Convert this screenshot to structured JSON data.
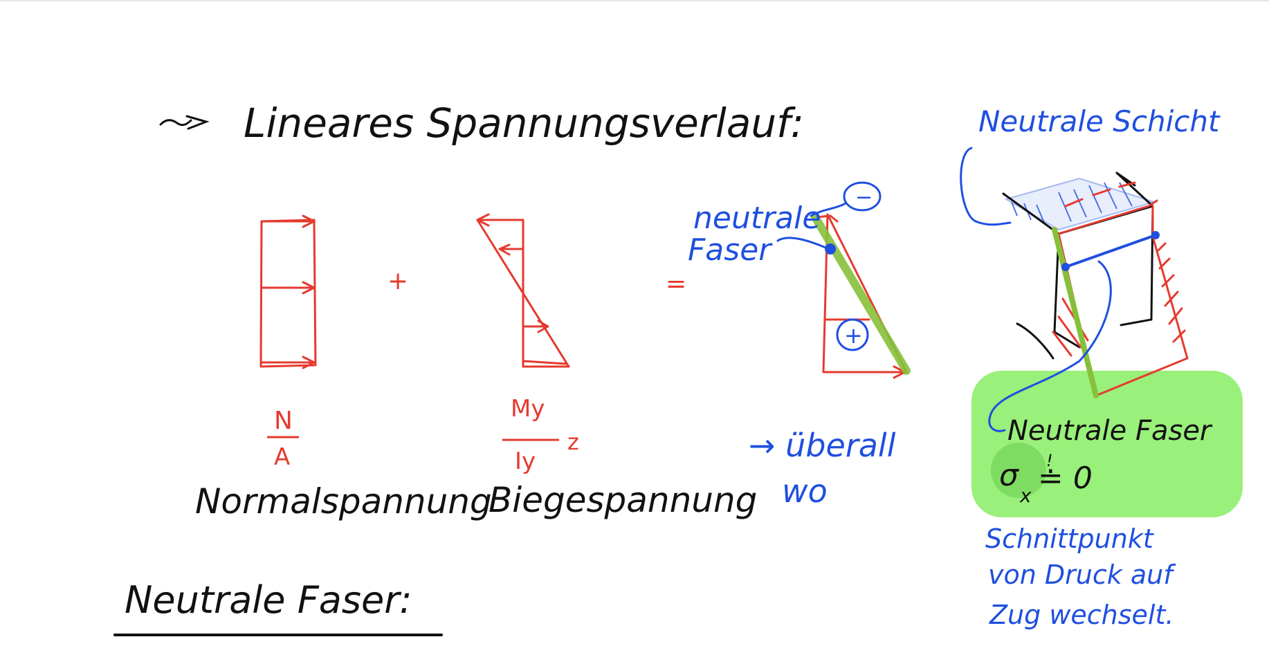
{
  "colors": {
    "ink_black": "#111111",
    "ink_red": "#e53a2f",
    "ink_blue": "#1f4fe0",
    "highlight_green": "#99f07a",
    "line_green": "#86c03a"
  },
  "heading": "Lineares Spannungsverlauf:",
  "diagram": {
    "normal": {
      "numerator": "N",
      "denominator": "A",
      "label": "Normalspannung"
    },
    "plus_sign": "+",
    "bending": {
      "numerator": "My",
      "denominator": "Iy",
      "factor": "z",
      "label": "Biegespannung"
    },
    "equals_sign": "=",
    "result": {
      "minus_symbol": "−",
      "plus_symbol": "+",
      "neutral_fiber_label_1": "neutrale",
      "neutral_fiber_label_2": "Faser",
      "note_line_1": "→ überall",
      "note_line_2": "wo"
    }
  },
  "right_panel": {
    "neutral_layer": "Neutrale Schicht",
    "neutral_fiber": "Neutrale Faser",
    "sigma_symbol": "σ",
    "sigma_subscript": "x",
    "sigma_relation": "≐ 0",
    "sigma_mark": "!",
    "explanation": [
      "Schnittpunkt",
      "von Druck auf",
      "Zug wechselt."
    ]
  },
  "section_heading": "Neutrale Faser:"
}
